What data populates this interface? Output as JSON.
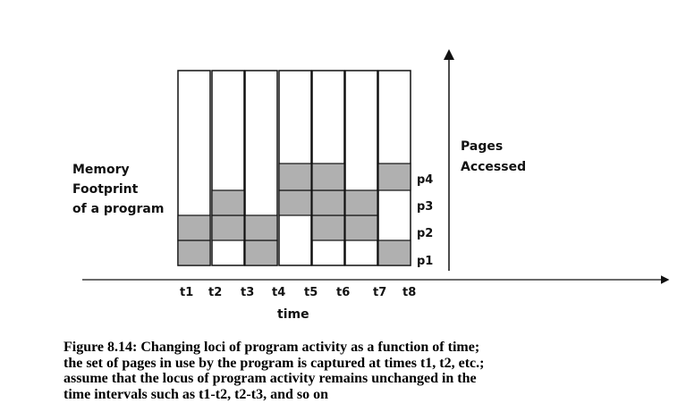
{
  "left_label": [
    "Memory",
    "Footprint",
    "of a program"
  ],
  "right_label": [
    "Pages",
    "Accessed"
  ],
  "page_labels": [
    "p4",
    "p3",
    "p2",
    "p1"
  ],
  "time_labels": [
    "t1",
    "t2",
    "t3",
    "t4",
    "t5",
    "t6",
    "t7",
    "t8"
  ],
  "x_axis_label": "time",
  "caption": [
    "Figure 8.14: Changing loci of program activity as a function of time;",
    "the set of pages in use by the program is captured at times t1, t2, etc.;",
    "assume that the locus of program activity remains unchanged in the",
    "time intervals such as t1-t2, t2-t3, and so on"
  ],
  "colors": {
    "shade": "#b0b0b0",
    "outline": "#111111",
    "background": "#ffffff"
  },
  "pages_in_use": [
    [
      "p1",
      "p2"
    ],
    [
      "p2",
      "p3"
    ],
    [
      "p1",
      "p2"
    ],
    [
      "p3",
      "p4"
    ],
    [
      "p2",
      "p3",
      "p4"
    ],
    [
      "p2",
      "p3"
    ],
    [
      "p1",
      "p4"
    ]
  ]
}
